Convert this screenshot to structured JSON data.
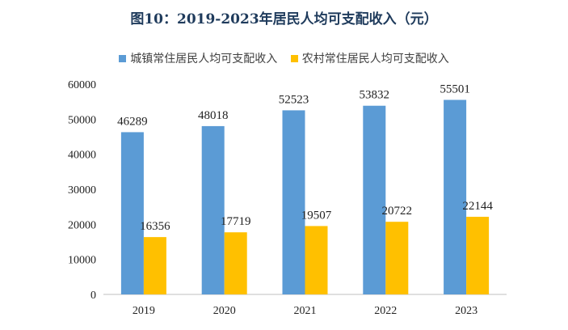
{
  "chart_data": {
    "type": "bar",
    "title": "图10：2019-2023年居民人均可支配收入（元）",
    "categories": [
      "2019",
      "2020",
      "2021",
      "2022",
      "2023"
    ],
    "series": [
      {
        "name": "城镇常住居民人均可支配收入",
        "color": "#5b9bd5",
        "values": [
          46289,
          48018,
          52523,
          53832,
          55501
        ]
      },
      {
        "name": "农村常住居民人均可支配收入",
        "color": "#ffc000",
        "values": [
          16356,
          17719,
          19507,
          20722,
          22144
        ]
      }
    ],
    "ylim": [
      0,
      60000
    ],
    "yticks": [
      0,
      10000,
      20000,
      30000,
      40000,
      50000,
      60000
    ],
    "data_labels": true,
    "grid": false,
    "legend": "top"
  }
}
